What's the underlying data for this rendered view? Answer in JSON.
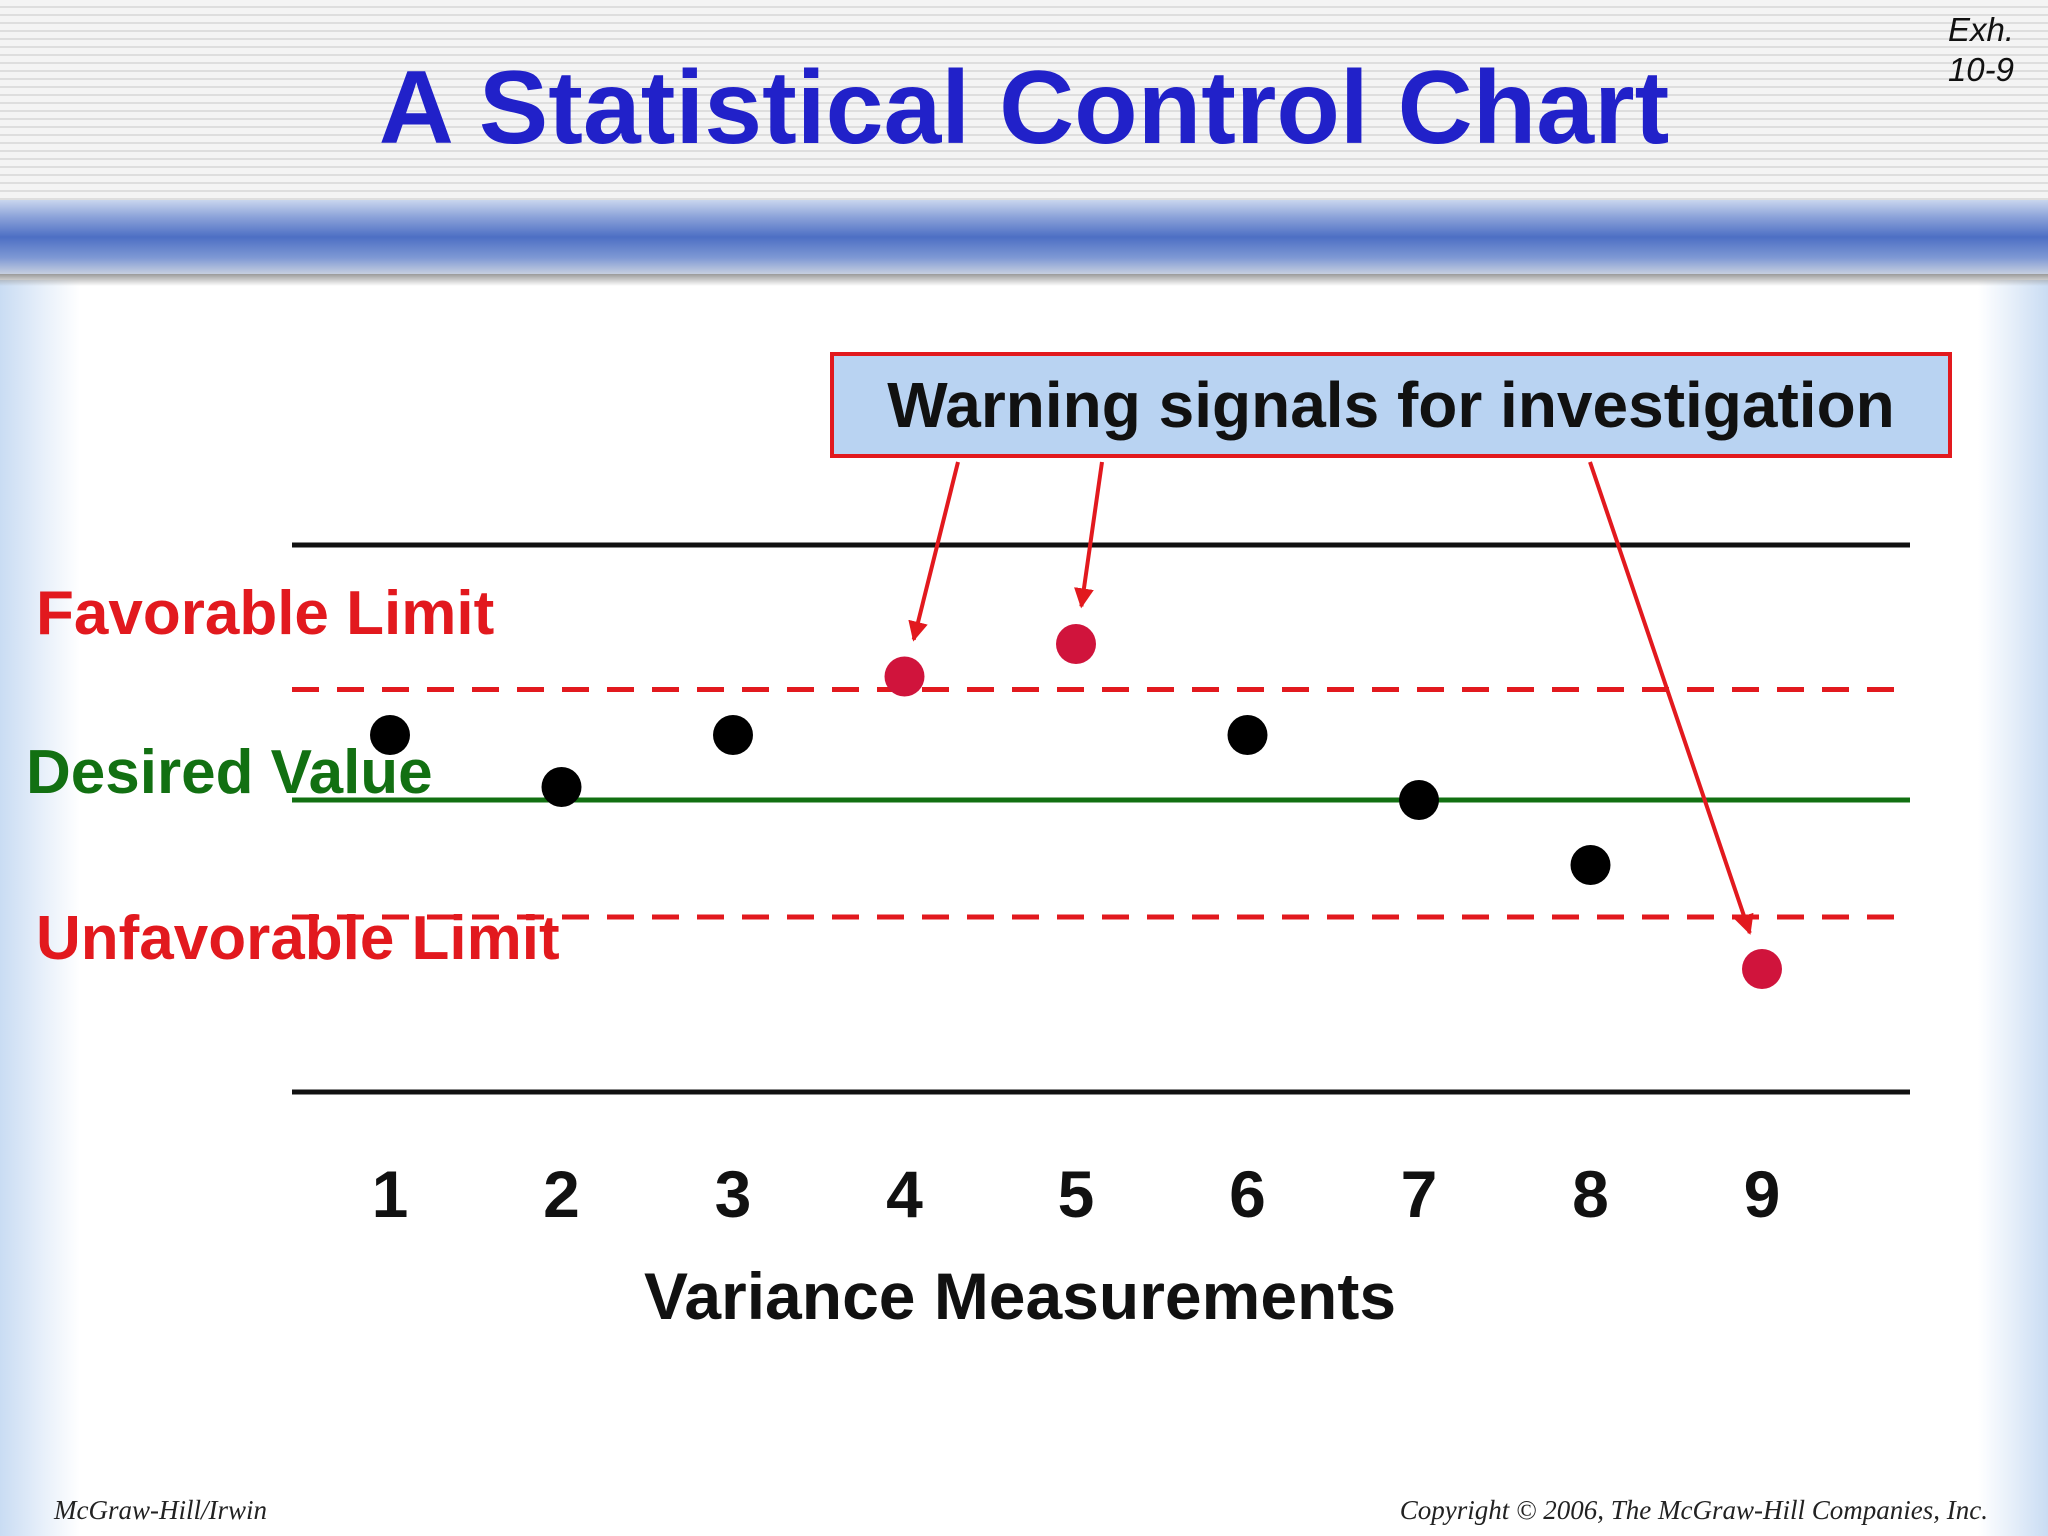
{
  "slide": {
    "title": "A Statistical Control Chart",
    "exhibit_line1": "Exh.",
    "exhibit_line2": "10-9",
    "footer_left": "McGraw-Hill/Irwin",
    "footer_right": "Copyright © 2006, The McGraw-Hill Companies, Inc."
  },
  "colors": {
    "title": "#2121c9",
    "limit": "#e2191e",
    "desired": "#127012",
    "in_control_point": "#000000",
    "warning_point": "#d0143c",
    "callout_fill": "#b9d3f2"
  },
  "chart_data": {
    "type": "scatter",
    "title": "",
    "xlabel": "Variance Measurements",
    "ylabel": "",
    "x": [
      1,
      2,
      3,
      4,
      5,
      6,
      7,
      8,
      9
    ],
    "y": [
      0.5,
      0.1,
      0.5,
      0.95,
      1.2,
      0.5,
      0.0,
      -0.5,
      -1.3
    ],
    "ylim": [
      -1.6,
      1.4
    ],
    "warning_points": [
      4,
      5,
      9
    ],
    "grid": false,
    "reference_lines": [
      {
        "label": "Favorable Limit",
        "y": 0.85,
        "style": "dashed",
        "color": "#e2191e"
      },
      {
        "label": "Desired Value",
        "y": 0,
        "style": "solid",
        "color": "#127012"
      },
      {
        "label": "Unfavorable Limit",
        "y": -0.9,
        "style": "dashed",
        "color": "#e2191e"
      }
    ],
    "annotation": {
      "text": "Warning signals for investigation",
      "targets": [
        4,
        5,
        9
      ]
    }
  }
}
